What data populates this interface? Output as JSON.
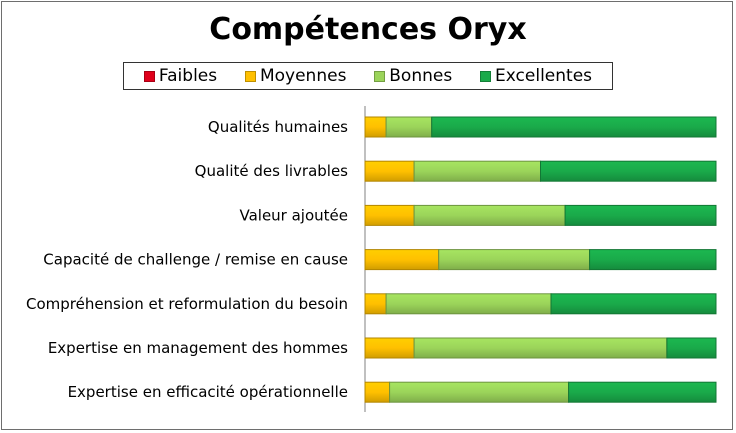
{
  "chart_data": {
    "type": "bar",
    "orientation": "horizontal",
    "stacked": true,
    "percent": true,
    "title": "Compétences Oryx",
    "xlim": [
      0,
      100
    ],
    "legend_position": "top",
    "categories": [
      "Qualités humaines",
      "Qualité des livrables",
      "Valeur ajoutée",
      "Capacité de challenge / remise en cause",
      "Compréhension et reformulation du besoin",
      "Expertise en management des hommes",
      "Expertise en efficacité opérationnelle"
    ],
    "series": [
      {
        "name": "Faibles",
        "color": "#e0001b",
        "values": [
          0,
          0,
          0,
          0,
          0,
          0,
          0
        ]
      },
      {
        "name": "Moyennes",
        "color": "#ffc000",
        "values": [
          6,
          14,
          14,
          21,
          6,
          14,
          7
        ]
      },
      {
        "name": "Bonnes",
        "color": "#9bd45a",
        "values": [
          13,
          36,
          43,
          43,
          47,
          72,
          51
        ]
      },
      {
        "name": "Excellentes",
        "color": "#1aaa4a",
        "values": [
          81,
          50,
          43,
          36,
          47,
          14,
          42
        ]
      }
    ]
  }
}
